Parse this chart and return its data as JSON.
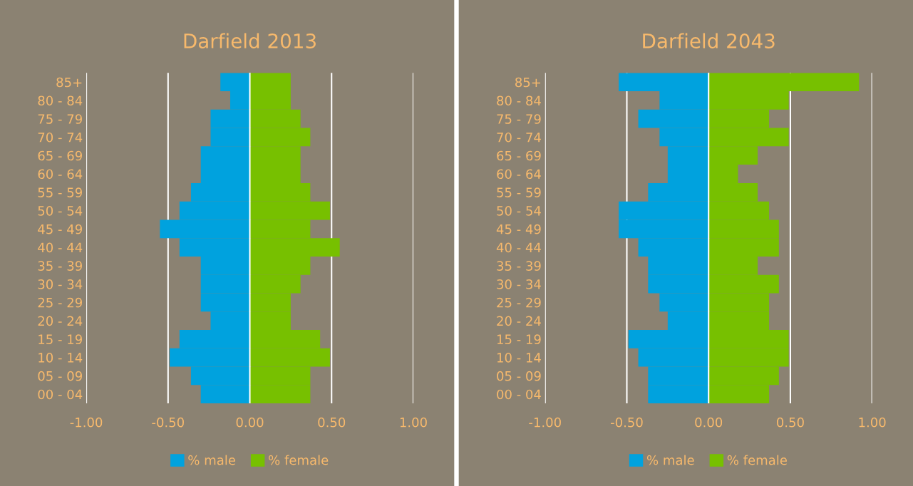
{
  "chart_data": [
    {
      "type": "bar",
      "orientation": "horizontal",
      "title": "Darfield 2013",
      "categories": [
        "85+",
        "80 - 84",
        "75 - 79",
        "70 - 74",
        "65 - 69",
        "60 - 64",
        "55 - 59",
        "50 - 54",
        "45 - 49",
        "40 - 44",
        "35 - 39",
        "30 - 34",
        "25 - 29",
        "20 - 24",
        "15 - 19",
        "10 - 14",
        "05 - 09",
        "00 - 04"
      ],
      "series": [
        {
          "name": "% male",
          "color": "#00a2de",
          "values": [
            -0.18,
            -0.12,
            -0.24,
            -0.24,
            -0.3,
            -0.3,
            -0.36,
            -0.43,
            -0.55,
            -0.43,
            -0.3,
            -0.3,
            -0.3,
            -0.24,
            -0.43,
            -0.49,
            -0.36,
            -0.3
          ]
        },
        {
          "name": "% female",
          "color": "#77c000",
          "values": [
            0.25,
            0.25,
            0.31,
            0.37,
            0.31,
            0.31,
            0.37,
            0.49,
            0.37,
            0.55,
            0.37,
            0.31,
            0.25,
            0.25,
            0.43,
            0.49,
            0.37,
            0.37
          ]
        }
      ],
      "xlim": [
        -1,
        1
      ],
      "stacked": true,
      "xticks": [
        {
          "value": -1,
          "label": "-1.00"
        },
        {
          "value": -0.5,
          "label": "-0.50"
        },
        {
          "value": 0,
          "label": "0.00"
        },
        {
          "value": 0.5,
          "label": "0.50"
        },
        {
          "value": 1,
          "label": "1.00"
        }
      ],
      "grid": "x",
      "legend": "bottom"
    },
    {
      "type": "bar",
      "orientation": "horizontal",
      "title": "Darfield 2043",
      "categories": [
        "85+",
        "80 - 84",
        "75 - 79",
        "70 - 74",
        "65 - 69",
        "60 - 64",
        "55 - 59",
        "50 - 54",
        "45 - 49",
        "40 - 44",
        "35 - 39",
        "30 - 34",
        "25 - 29",
        "20 - 24",
        "15 - 19",
        "10 - 14",
        "05 - 09",
        "00 - 04"
      ],
      "series": [
        {
          "name": "% male",
          "color": "#00a2de",
          "values": [
            -0.55,
            -0.3,
            -0.43,
            -0.3,
            -0.25,
            -0.25,
            -0.37,
            -0.55,
            -0.55,
            -0.43,
            -0.37,
            -0.37,
            -0.3,
            -0.25,
            -0.49,
            -0.43,
            -0.37,
            -0.37
          ]
        },
        {
          "name": "% female",
          "color": "#77c000",
          "values": [
            0.92,
            0.49,
            0.37,
            0.49,
            0.3,
            0.18,
            0.3,
            0.37,
            0.43,
            0.43,
            0.3,
            0.43,
            0.37,
            0.37,
            0.49,
            0.49,
            0.43,
            0.37
          ]
        }
      ],
      "xlim": [
        -1,
        1
      ],
      "stacked": true,
      "xticks": [
        {
          "value": -1,
          "label": "-1.00"
        },
        {
          "value": -0.5,
          "label": "-0.50"
        },
        {
          "value": 0,
          "label": "0.00"
        },
        {
          "value": 0.5,
          "label": "0.50"
        },
        {
          "value": 1,
          "label": "1.00"
        }
      ],
      "grid": "x",
      "legend": "bottom"
    }
  ]
}
